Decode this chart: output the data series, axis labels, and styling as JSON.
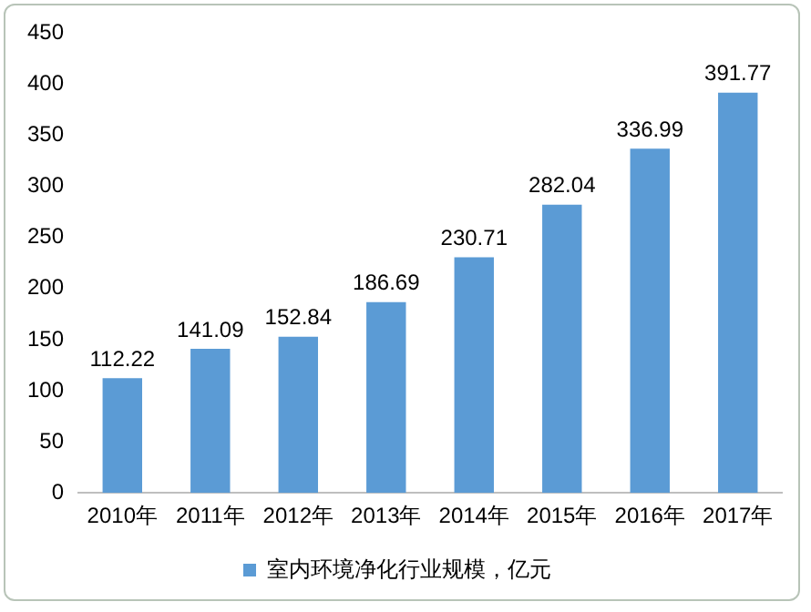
{
  "chart_data": {
    "type": "bar",
    "categories": [
      "2010年",
      "2011年",
      "2012年",
      "2013年",
      "2014年",
      "2015年",
      "2016年",
      "2017年"
    ],
    "series": [
      {
        "name": "室内环境净化行业规模，亿元",
        "color": "#5b9bd5",
        "values": [
          112.22,
          141.09,
          152.84,
          186.69,
          230.71,
          282.04,
          336.99,
          391.77
        ]
      }
    ],
    "ylim": [
      0,
      450
    ],
    "yticks": [
      0,
      50,
      100,
      150,
      200,
      250,
      300,
      350,
      400,
      450
    ],
    "grid": false,
    "legend": "bottom",
    "data_labels": true
  }
}
